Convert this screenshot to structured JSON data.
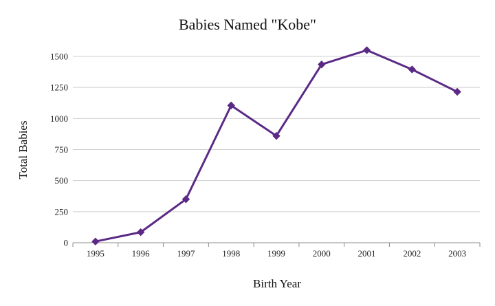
{
  "chart_data": {
    "type": "line",
    "title": "Babies Named \"Kobe\"",
    "xlabel": "Birth Year",
    "ylabel": "Total Babies",
    "categories": [
      "1995",
      "1996",
      "1997",
      "1998",
      "1999",
      "2000",
      "2001",
      "2002",
      "2003"
    ],
    "series": [
      {
        "values": [
          10,
          85,
          350,
          1105,
          860,
          1435,
          1550,
          1395,
          1215
        ]
      }
    ],
    "yticks": [
      0,
      250,
      500,
      750,
      1000,
      1250,
      1500
    ],
    "ylim": [
      0,
      1500
    ],
    "grid": true,
    "legend": "none",
    "marker": "diamond",
    "color": "#5b2a86"
  }
}
